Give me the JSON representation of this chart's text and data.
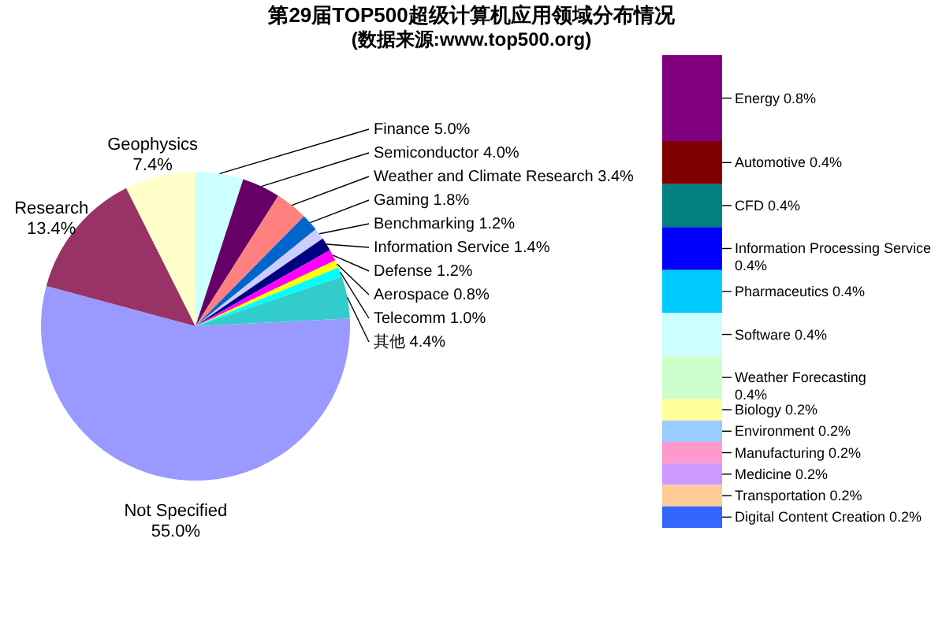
{
  "chart_data": [
    {
      "type": "pie",
      "title": "第29届TOP500超级计算机应用领域分布情况",
      "subtitle": "(数据来源:www.top500.org)",
      "categories": [
        "Finance",
        "Semiconductor",
        "Weather and Climate Research",
        "Gaming",
        "Benchmarking",
        "Information Service",
        "Defense",
        "Aerospace",
        "Telecomm",
        "其他",
        "Not Specified",
        "Research",
        "Geophysics"
      ],
      "values": [
        5.0,
        4.0,
        3.4,
        1.8,
        1.2,
        1.4,
        1.2,
        0.8,
        1.0,
        4.4,
        55.0,
        13.4,
        7.4
      ],
      "value_labels": [
        "5.0%",
        "4.0%",
        "3.4%",
        "1.8%",
        "1.2%",
        "1.4%",
        "1.2%",
        "0.8%",
        "1.0%",
        "4.4%",
        "55.0%",
        "13.4%",
        "7.4%"
      ],
      "colors": [
        "#ccffff",
        "#660066",
        "#ff8080",
        "#0066cc",
        "#ccccff",
        "#000080",
        "#ff00ff",
        "#ffff00",
        "#00ffff",
        "#33cccc",
        "#9999ff",
        "#993366",
        "#ffffcc"
      ]
    },
    {
      "type": "bar",
      "stacked": true,
      "categories": [
        null
      ],
      "series": [
        {
          "name": "Energy",
          "color": "#800080",
          "values": [
            0.8
          ],
          "value_labels": [
            "0.8%"
          ]
        },
        {
          "name": "Automotive",
          "color": "#800000",
          "values": [
            0.4
          ],
          "value_labels": [
            "0.4%"
          ]
        },
        {
          "name": "CFD",
          "color": "#008080",
          "values": [
            0.4
          ],
          "value_labels": [
            "0.4%"
          ]
        },
        {
          "name": "Information Processing Service",
          "color": "#0000ff",
          "values": [
            0.4
          ],
          "value_labels": [
            "0.4%"
          ]
        },
        {
          "name": "Pharmaceutics",
          "color": "#00ccff",
          "values": [
            0.4
          ],
          "value_labels": [
            "0.4%"
          ]
        },
        {
          "name": "Software",
          "color": "#ccffff",
          "values": [
            0.4
          ],
          "value_labels": [
            "0.4%"
          ]
        },
        {
          "name": "Weather Forecasting",
          "color": "#ccffcc",
          "values": [
            0.4
          ],
          "value_labels": [
            "0.4%"
          ]
        },
        {
          "name": "Biology",
          "color": "#ffff99",
          "values": [
            0.2
          ],
          "value_labels": [
            "0.2%"
          ]
        },
        {
          "name": "Environment",
          "color": "#99ccff",
          "values": [
            0.2
          ],
          "value_labels": [
            "0.2%"
          ]
        },
        {
          "name": "Manufacturing",
          "color": "#ff99cc",
          "values": [
            0.2
          ],
          "value_labels": [
            "0.2%"
          ]
        },
        {
          "name": "Medicine",
          "color": "#cc99ff",
          "values": [
            0.2
          ],
          "value_labels": [
            "0.2%"
          ]
        },
        {
          "name": "Transportation",
          "color": "#ffcc99",
          "values": [
            0.2
          ],
          "value_labels": [
            "0.2%"
          ]
        },
        {
          "name": "Digital Content Creation",
          "color": "#3366ff",
          "values": [
            0.2
          ],
          "value_labels": [
            "0.2%"
          ]
        }
      ]
    }
  ]
}
